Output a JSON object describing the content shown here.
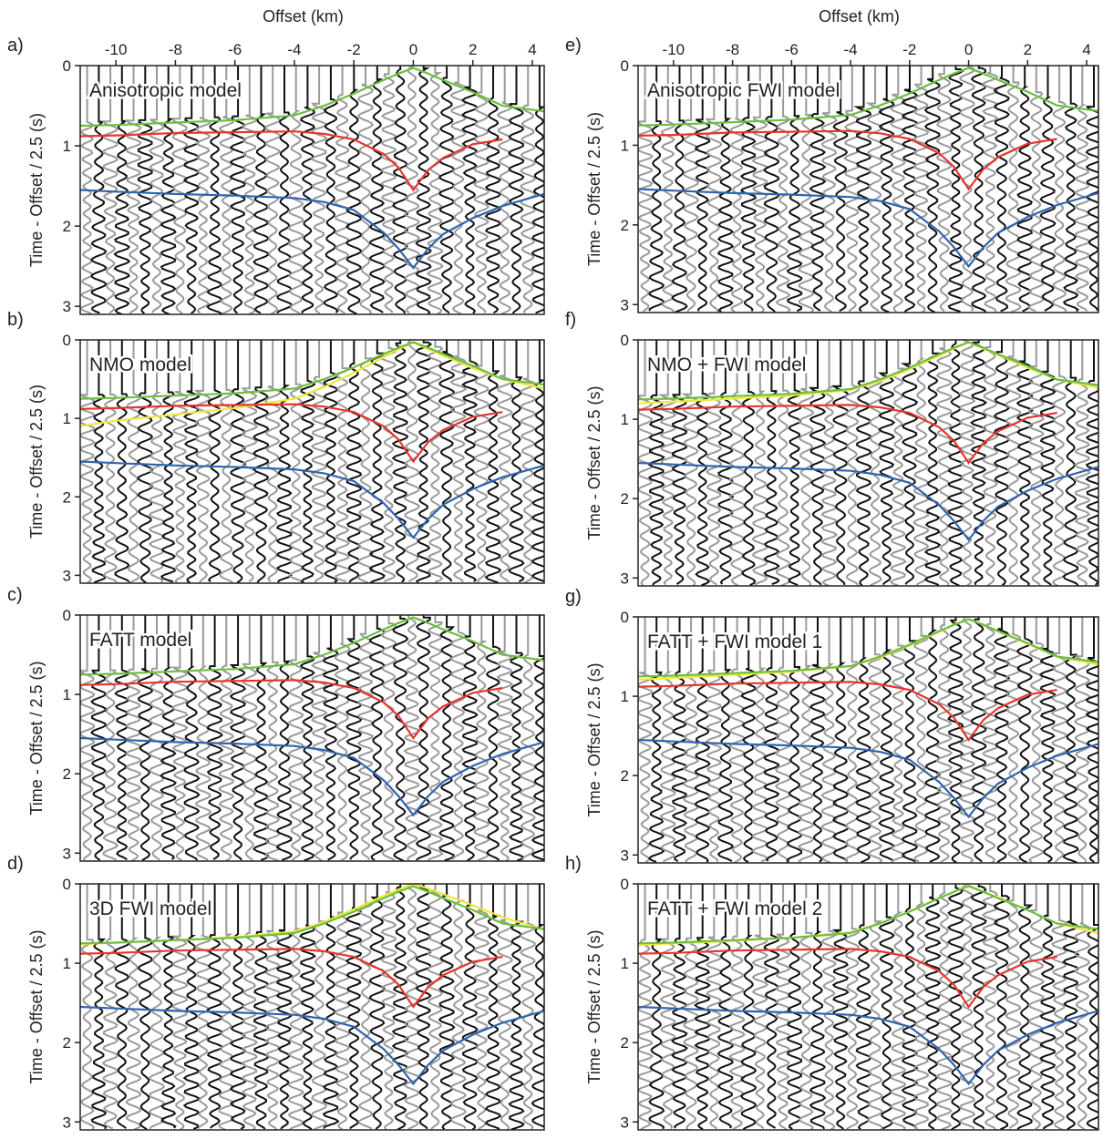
{
  "chart_data": [
    {
      "type": "line",
      "label": "a)",
      "title": "Anisotropic model",
      "xlabel": "Offset (km)",
      "ylabel": "Time - Offset / 2.5 (s)",
      "xlim": [
        -11.2,
        4.4
      ],
      "xticks": [
        -10,
        -8,
        -6,
        -4,
        -2,
        0,
        2,
        4
      ],
      "ylim": [
        0,
        3.1
      ],
      "yticks": [
        0,
        1,
        2,
        3
      ],
      "y_inverted": true,
      "x": [
        -11.2,
        -10,
        -8,
        -6,
        -4,
        -3,
        -2,
        -1,
        -0.5,
        0,
        0.5,
        1,
        2,
        3,
        4.4
      ],
      "series": [
        {
          "color": "#6cbf3f",
          "values": [
            0.75,
            0.74,
            0.71,
            0.68,
            0.62,
            0.5,
            0.35,
            0.18,
            0.1,
            0.03,
            0.1,
            0.18,
            0.33,
            0.5,
            0.57
          ]
        },
        {
          "color": "#e8342c",
          "values": [
            0.88,
            0.87,
            0.84,
            0.83,
            0.82,
            0.85,
            0.92,
            1.1,
            1.27,
            1.55,
            1.3,
            1.15,
            0.98,
            0.92,
            null
          ]
        },
        {
          "color": "#2f64b0",
          "values": [
            1.55,
            1.57,
            1.6,
            1.62,
            1.65,
            1.7,
            1.8,
            2.08,
            2.28,
            2.52,
            2.28,
            2.1,
            1.9,
            1.75,
            1.6
          ]
        }
      ]
    },
    {
      "type": "line",
      "label": "b)",
      "title": "NMO model",
      "ylabel": "Time - Offset / 2.5 (s)",
      "xlim": [
        -11.2,
        4.4
      ],
      "ylim": [
        0,
        3.1
      ],
      "yticks": [
        0,
        1,
        2,
        3
      ],
      "y_inverted": true,
      "x": [
        -11.2,
        -10,
        -8,
        -6,
        -4,
        -3,
        -2,
        -1,
        -0.5,
        0,
        0.5,
        1,
        2,
        3,
        4.4
      ],
      "series": [
        {
          "color": "#f0e83a",
          "values": [
            1.1,
            1.03,
            0.95,
            0.87,
            0.75,
            0.6,
            0.42,
            0.22,
            0.12,
            0.03,
            0.12,
            0.2,
            0.36,
            0.5,
            0.62
          ]
        },
        {
          "color": "#6cbf3f",
          "values": [
            0.75,
            0.74,
            0.71,
            0.68,
            0.62,
            0.5,
            0.35,
            0.18,
            0.1,
            0.03,
            0.1,
            0.18,
            0.33,
            0.5,
            0.57
          ]
        },
        {
          "color": "#e8342c",
          "values": [
            0.88,
            0.87,
            0.84,
            0.83,
            0.82,
            0.85,
            0.92,
            1.1,
            1.27,
            1.55,
            1.3,
            1.15,
            0.98,
            0.92,
            null
          ]
        },
        {
          "color": "#2f64b0",
          "values": [
            1.55,
            1.57,
            1.6,
            1.62,
            1.65,
            1.7,
            1.8,
            2.08,
            2.28,
            2.52,
            2.28,
            2.1,
            1.9,
            1.75,
            1.6
          ]
        }
      ]
    },
    {
      "type": "line",
      "label": "c)",
      "title": "FATT model",
      "ylabel": "Time - Offset / 2.5 (s)",
      "xlim": [
        -11.2,
        4.4
      ],
      "ylim": [
        0,
        3.1
      ],
      "yticks": [
        0,
        1,
        2,
        3
      ],
      "y_inverted": true,
      "x": [
        -11.2,
        -10,
        -8,
        -6,
        -4,
        -3,
        -2,
        -1,
        -0.5,
        0,
        0.5,
        1,
        2,
        3,
        4.4
      ],
      "series": [
        {
          "color": "#6cbf3f",
          "values": [
            0.75,
            0.74,
            0.71,
            0.68,
            0.62,
            0.5,
            0.35,
            0.18,
            0.1,
            0.03,
            0.1,
            0.18,
            0.33,
            0.5,
            0.57
          ]
        },
        {
          "color": "#e8342c",
          "values": [
            0.88,
            0.87,
            0.84,
            0.83,
            0.82,
            0.85,
            0.92,
            1.1,
            1.27,
            1.55,
            1.3,
            1.15,
            0.98,
            0.92,
            null
          ]
        },
        {
          "color": "#2f64b0",
          "values": [
            1.55,
            1.57,
            1.6,
            1.62,
            1.65,
            1.7,
            1.8,
            2.08,
            2.28,
            2.52,
            2.28,
            2.1,
            1.9,
            1.75,
            1.6
          ]
        }
      ]
    },
    {
      "type": "line",
      "label": "d)",
      "title": "3D FWI model",
      "ylabel": "Time - Offset / 2.5 (s)",
      "xlim": [
        -11.2,
        4.4
      ],
      "ylim": [
        0,
        3.1
      ],
      "yticks": [
        0,
        1,
        2,
        3
      ],
      "y_inverted": true,
      "x": [
        -11.2,
        -10,
        -8,
        -6,
        -4,
        -3,
        -2,
        -1,
        -0.5,
        0,
        0.5,
        1,
        2,
        3,
        4.4
      ],
      "series": [
        {
          "color": "#f0e83a",
          "values": [
            0.76,
            0.74,
            0.71,
            0.67,
            0.6,
            0.48,
            0.32,
            0.15,
            0.07,
            0.0,
            0.06,
            0.13,
            0.27,
            0.42,
            0.58
          ]
        },
        {
          "color": "#6cbf3f",
          "values": [
            0.75,
            0.74,
            0.71,
            0.68,
            0.62,
            0.5,
            0.35,
            0.18,
            0.1,
            0.03,
            0.1,
            0.18,
            0.33,
            0.5,
            0.57
          ]
        },
        {
          "color": "#e8342c",
          "values": [
            0.88,
            0.87,
            0.84,
            0.83,
            0.82,
            0.85,
            0.92,
            1.1,
            1.27,
            1.55,
            1.3,
            1.15,
            0.98,
            0.92,
            null
          ]
        },
        {
          "color": "#2f64b0",
          "values": [
            1.55,
            1.57,
            1.6,
            1.62,
            1.65,
            1.7,
            1.8,
            2.08,
            2.28,
            2.52,
            2.28,
            2.1,
            1.9,
            1.75,
            1.6
          ]
        }
      ]
    },
    {
      "type": "line",
      "label": "e)",
      "title": "Anisotropic FWI model",
      "xlabel": "Offset (km)",
      "ylabel": "Time - Offset / 2.5 (s)",
      "xlim": [
        -11.2,
        4.4
      ],
      "xticks": [
        -10,
        -8,
        -6,
        -4,
        -2,
        0,
        2,
        4
      ],
      "ylim": [
        0,
        3.1
      ],
      "yticks": [
        0,
        1,
        2,
        3
      ],
      "y_inverted": true,
      "x": [
        -11.2,
        -10,
        -8,
        -6,
        -4,
        -3,
        -2,
        -1,
        -0.5,
        0,
        0.5,
        1,
        2,
        3,
        4.4
      ],
      "series": [
        {
          "color": "#6cbf3f",
          "values": [
            0.75,
            0.74,
            0.71,
            0.68,
            0.62,
            0.5,
            0.35,
            0.18,
            0.1,
            0.03,
            0.1,
            0.18,
            0.33,
            0.5,
            0.57
          ]
        },
        {
          "color": "#e8342c",
          "values": [
            0.88,
            0.87,
            0.84,
            0.83,
            0.82,
            0.85,
            0.92,
            1.1,
            1.27,
            1.55,
            1.3,
            1.15,
            0.98,
            0.92,
            null
          ]
        },
        {
          "color": "#2f64b0",
          "values": [
            1.55,
            1.57,
            1.6,
            1.62,
            1.65,
            1.7,
            1.8,
            2.08,
            2.28,
            2.52,
            2.28,
            2.1,
            1.9,
            1.75,
            1.6
          ]
        }
      ]
    },
    {
      "type": "line",
      "label": "f)",
      "title": "NMO + FWI model",
      "ylabel": "Time - Offset / 2.5 (s)",
      "xlim": [
        -11.2,
        4.4
      ],
      "ylim": [
        0,
        3.1
      ],
      "yticks": [
        0,
        1,
        2,
        3
      ],
      "y_inverted": true,
      "x": [
        -11.2,
        -10,
        -8,
        -6,
        -4,
        -3,
        -2,
        -1,
        -0.5,
        0,
        0.5,
        1,
        2,
        3,
        4.4
      ],
      "series": [
        {
          "color": "#f0e83a",
          "values": [
            0.8,
            0.78,
            0.74,
            0.7,
            0.63,
            0.52,
            0.37,
            0.2,
            0.11,
            0.03,
            0.11,
            0.19,
            0.35,
            0.5,
            0.6
          ]
        },
        {
          "color": "#6cbf3f",
          "values": [
            0.75,
            0.74,
            0.71,
            0.68,
            0.62,
            0.5,
            0.35,
            0.18,
            0.1,
            0.03,
            0.1,
            0.18,
            0.33,
            0.5,
            0.57
          ]
        },
        {
          "color": "#e8342c",
          "values": [
            0.88,
            0.87,
            0.84,
            0.83,
            0.82,
            0.85,
            0.92,
            1.1,
            1.27,
            1.55,
            1.3,
            1.15,
            0.98,
            0.92,
            null
          ]
        },
        {
          "color": "#2f64b0",
          "values": [
            1.55,
            1.57,
            1.6,
            1.62,
            1.65,
            1.7,
            1.8,
            2.08,
            2.28,
            2.52,
            2.28,
            2.1,
            1.9,
            1.75,
            1.6
          ]
        }
      ]
    },
    {
      "type": "line",
      "label": "g)",
      "title": "FATT + FWI model 1",
      "ylabel": "Time - Offset / 2.5 (s)",
      "xlim": [
        -11.2,
        4.4
      ],
      "ylim": [
        0,
        3.1
      ],
      "yticks": [
        0,
        1,
        2,
        3
      ],
      "y_inverted": true,
      "x": [
        -11.2,
        -10,
        -8,
        -6,
        -4,
        -3,
        -2,
        -1,
        -0.5,
        0,
        0.5,
        1,
        2,
        3,
        4.4
      ],
      "series": [
        {
          "color": "#f0e83a",
          "values": [
            0.79,
            0.77,
            0.73,
            0.69,
            0.62,
            0.51,
            0.36,
            0.19,
            0.1,
            0.03,
            0.1,
            0.18,
            0.34,
            0.5,
            0.6
          ]
        },
        {
          "color": "#6cbf3f",
          "values": [
            0.75,
            0.74,
            0.71,
            0.68,
            0.62,
            0.5,
            0.35,
            0.18,
            0.1,
            0.03,
            0.1,
            0.18,
            0.33,
            0.5,
            0.57
          ]
        },
        {
          "color": "#e8342c",
          "values": [
            0.88,
            0.87,
            0.84,
            0.83,
            0.82,
            0.85,
            0.92,
            1.1,
            1.27,
            1.55,
            1.3,
            1.15,
            0.98,
            0.92,
            null
          ]
        },
        {
          "color": "#2f64b0",
          "values": [
            1.55,
            1.57,
            1.6,
            1.62,
            1.65,
            1.7,
            1.8,
            2.08,
            2.28,
            2.52,
            2.28,
            2.1,
            1.9,
            1.75,
            1.6
          ]
        }
      ]
    },
    {
      "type": "line",
      "label": "h)",
      "title": "FATT + FWI model 2",
      "ylabel": "Time - Offset / 2.5 (s)",
      "xlim": [
        -11.2,
        4.4
      ],
      "ylim": [
        0,
        3.1
      ],
      "yticks": [
        0,
        1,
        2,
        3
      ],
      "y_inverted": true,
      "x": [
        -11.2,
        -10,
        -8,
        -6,
        -4,
        -3,
        -2,
        -1,
        -0.5,
        0,
        0.5,
        1,
        2,
        3,
        4.4
      ],
      "series": [
        {
          "color": "#f0e83a",
          "values": [
            0.77,
            0.75,
            0.72,
            0.68,
            0.61,
            0.5,
            0.35,
            0.18,
            0.1,
            0.02,
            0.1,
            0.17,
            0.33,
            0.5,
            0.62
          ]
        },
        {
          "color": "#6cbf3f",
          "values": [
            0.75,
            0.74,
            0.71,
            0.68,
            0.62,
            0.5,
            0.35,
            0.18,
            0.1,
            0.03,
            0.1,
            0.18,
            0.33,
            0.5,
            0.57
          ]
        },
        {
          "color": "#e8342c",
          "values": [
            0.88,
            0.87,
            0.84,
            0.83,
            0.82,
            0.85,
            0.92,
            1.1,
            1.27,
            1.55,
            1.3,
            1.15,
            0.98,
            0.92,
            null
          ]
        },
        {
          "color": "#2f64b0",
          "values": [
            1.55,
            1.57,
            1.6,
            1.62,
            1.65,
            1.7,
            1.8,
            2.08,
            2.28,
            2.52,
            2.28,
            2.1,
            1.9,
            1.75,
            1.6
          ]
        }
      ]
    }
  ]
}
